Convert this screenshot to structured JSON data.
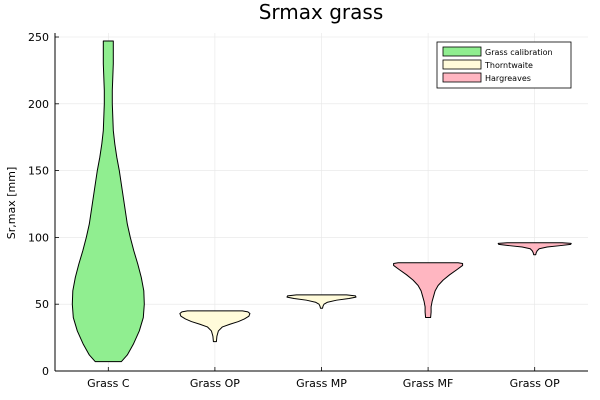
{
  "chart_data": {
    "type": "violin",
    "title": "Srmax grass",
    "xlabel": "",
    "ylabel": "Sr,max [mm]",
    "categories": [
      "Grass C",
      "Grass OP",
      "Grass MP",
      "Grass MF",
      "Grass OP"
    ],
    "yticks": [
      0,
      50,
      100,
      150,
      200,
      250
    ],
    "ylim": [
      0,
      253
    ],
    "grid": true,
    "legend": {
      "position": "top-right",
      "entries": [
        {
          "name": "Grass calibration",
          "color": "#90ee90"
        },
        {
          "name": "Thorntwaite",
          "color": "#fffbda"
        },
        {
          "name": "Hargreaves",
          "color": "#ffb6c1"
        }
      ]
    },
    "series": [
      {
        "category": "Grass C",
        "group": "Grass calibration",
        "color": "#90ee90",
        "min": 7,
        "max": 247,
        "profile": [
          [
            7,
            0.26
          ],
          [
            12,
            0.38
          ],
          [
            20,
            0.5
          ],
          [
            30,
            0.62
          ],
          [
            40,
            0.7
          ],
          [
            50,
            0.72
          ],
          [
            60,
            0.71
          ],
          [
            70,
            0.66
          ],
          [
            80,
            0.59
          ],
          [
            90,
            0.51
          ],
          [
            100,
            0.44
          ],
          [
            110,
            0.38
          ],
          [
            120,
            0.34
          ],
          [
            130,
            0.3
          ],
          [
            140,
            0.26
          ],
          [
            150,
            0.22
          ],
          [
            160,
            0.17
          ],
          [
            170,
            0.13
          ],
          [
            180,
            0.1
          ],
          [
            190,
            0.09
          ],
          [
            200,
            0.08
          ],
          [
            210,
            0.08
          ],
          [
            220,
            0.09
          ],
          [
            230,
            0.1
          ],
          [
            240,
            0.1
          ],
          [
            247,
            0.1
          ]
        ]
      },
      {
        "category": "Grass OP",
        "group": "Thorntwaite",
        "color": "#fffbda",
        "min": 22,
        "max": 45,
        "profile": [
          [
            22,
            0.03
          ],
          [
            26,
            0.04
          ],
          [
            30,
            0.07
          ],
          [
            33,
            0.15
          ],
          [
            35,
            0.3
          ],
          [
            37,
            0.47
          ],
          [
            39,
            0.59
          ],
          [
            41,
            0.68
          ],
          [
            43,
            0.7
          ],
          [
            44.3,
            0.66
          ],
          [
            45,
            0.55
          ]
        ]
      },
      {
        "category": "Grass MP",
        "group": "Thorntwaite",
        "color": "#fffbda",
        "min": 47,
        "max": 57,
        "profile": [
          [
            47,
            0.02
          ],
          [
            48.5,
            0.03
          ],
          [
            50,
            0.05
          ],
          [
            51.5,
            0.12
          ],
          [
            53,
            0.3
          ],
          [
            54.3,
            0.55
          ],
          [
            55.3,
            0.69
          ],
          [
            56.2,
            0.68
          ],
          [
            57,
            0.5
          ]
        ]
      },
      {
        "category": "Grass MF",
        "group": "Hargreaves",
        "color": "#ffb6c1",
        "min": 40,
        "max": 81,
        "profile": [
          [
            40,
            0.05
          ],
          [
            44,
            0.06
          ],
          [
            48,
            0.06
          ],
          [
            52,
            0.08
          ],
          [
            56,
            0.11
          ],
          [
            60,
            0.14
          ],
          [
            64,
            0.2
          ],
          [
            68,
            0.3
          ],
          [
            72,
            0.43
          ],
          [
            76,
            0.58
          ],
          [
            79,
            0.69
          ],
          [
            80.5,
            0.69
          ],
          [
            81,
            0.6
          ]
        ]
      },
      {
        "category": "Grass OP",
        "group": "Hargreaves",
        "color": "#ffb6c1",
        "min": 87,
        "max": 96,
        "profile": [
          [
            87,
            0.02
          ],
          [
            88.5,
            0.03
          ],
          [
            90,
            0.05
          ],
          [
            91.5,
            0.09
          ],
          [
            92.8,
            0.25
          ],
          [
            93.8,
            0.5
          ],
          [
            94.8,
            0.72
          ],
          [
            95.5,
            0.73
          ],
          [
            96,
            0.55
          ]
        ]
      }
    ]
  }
}
